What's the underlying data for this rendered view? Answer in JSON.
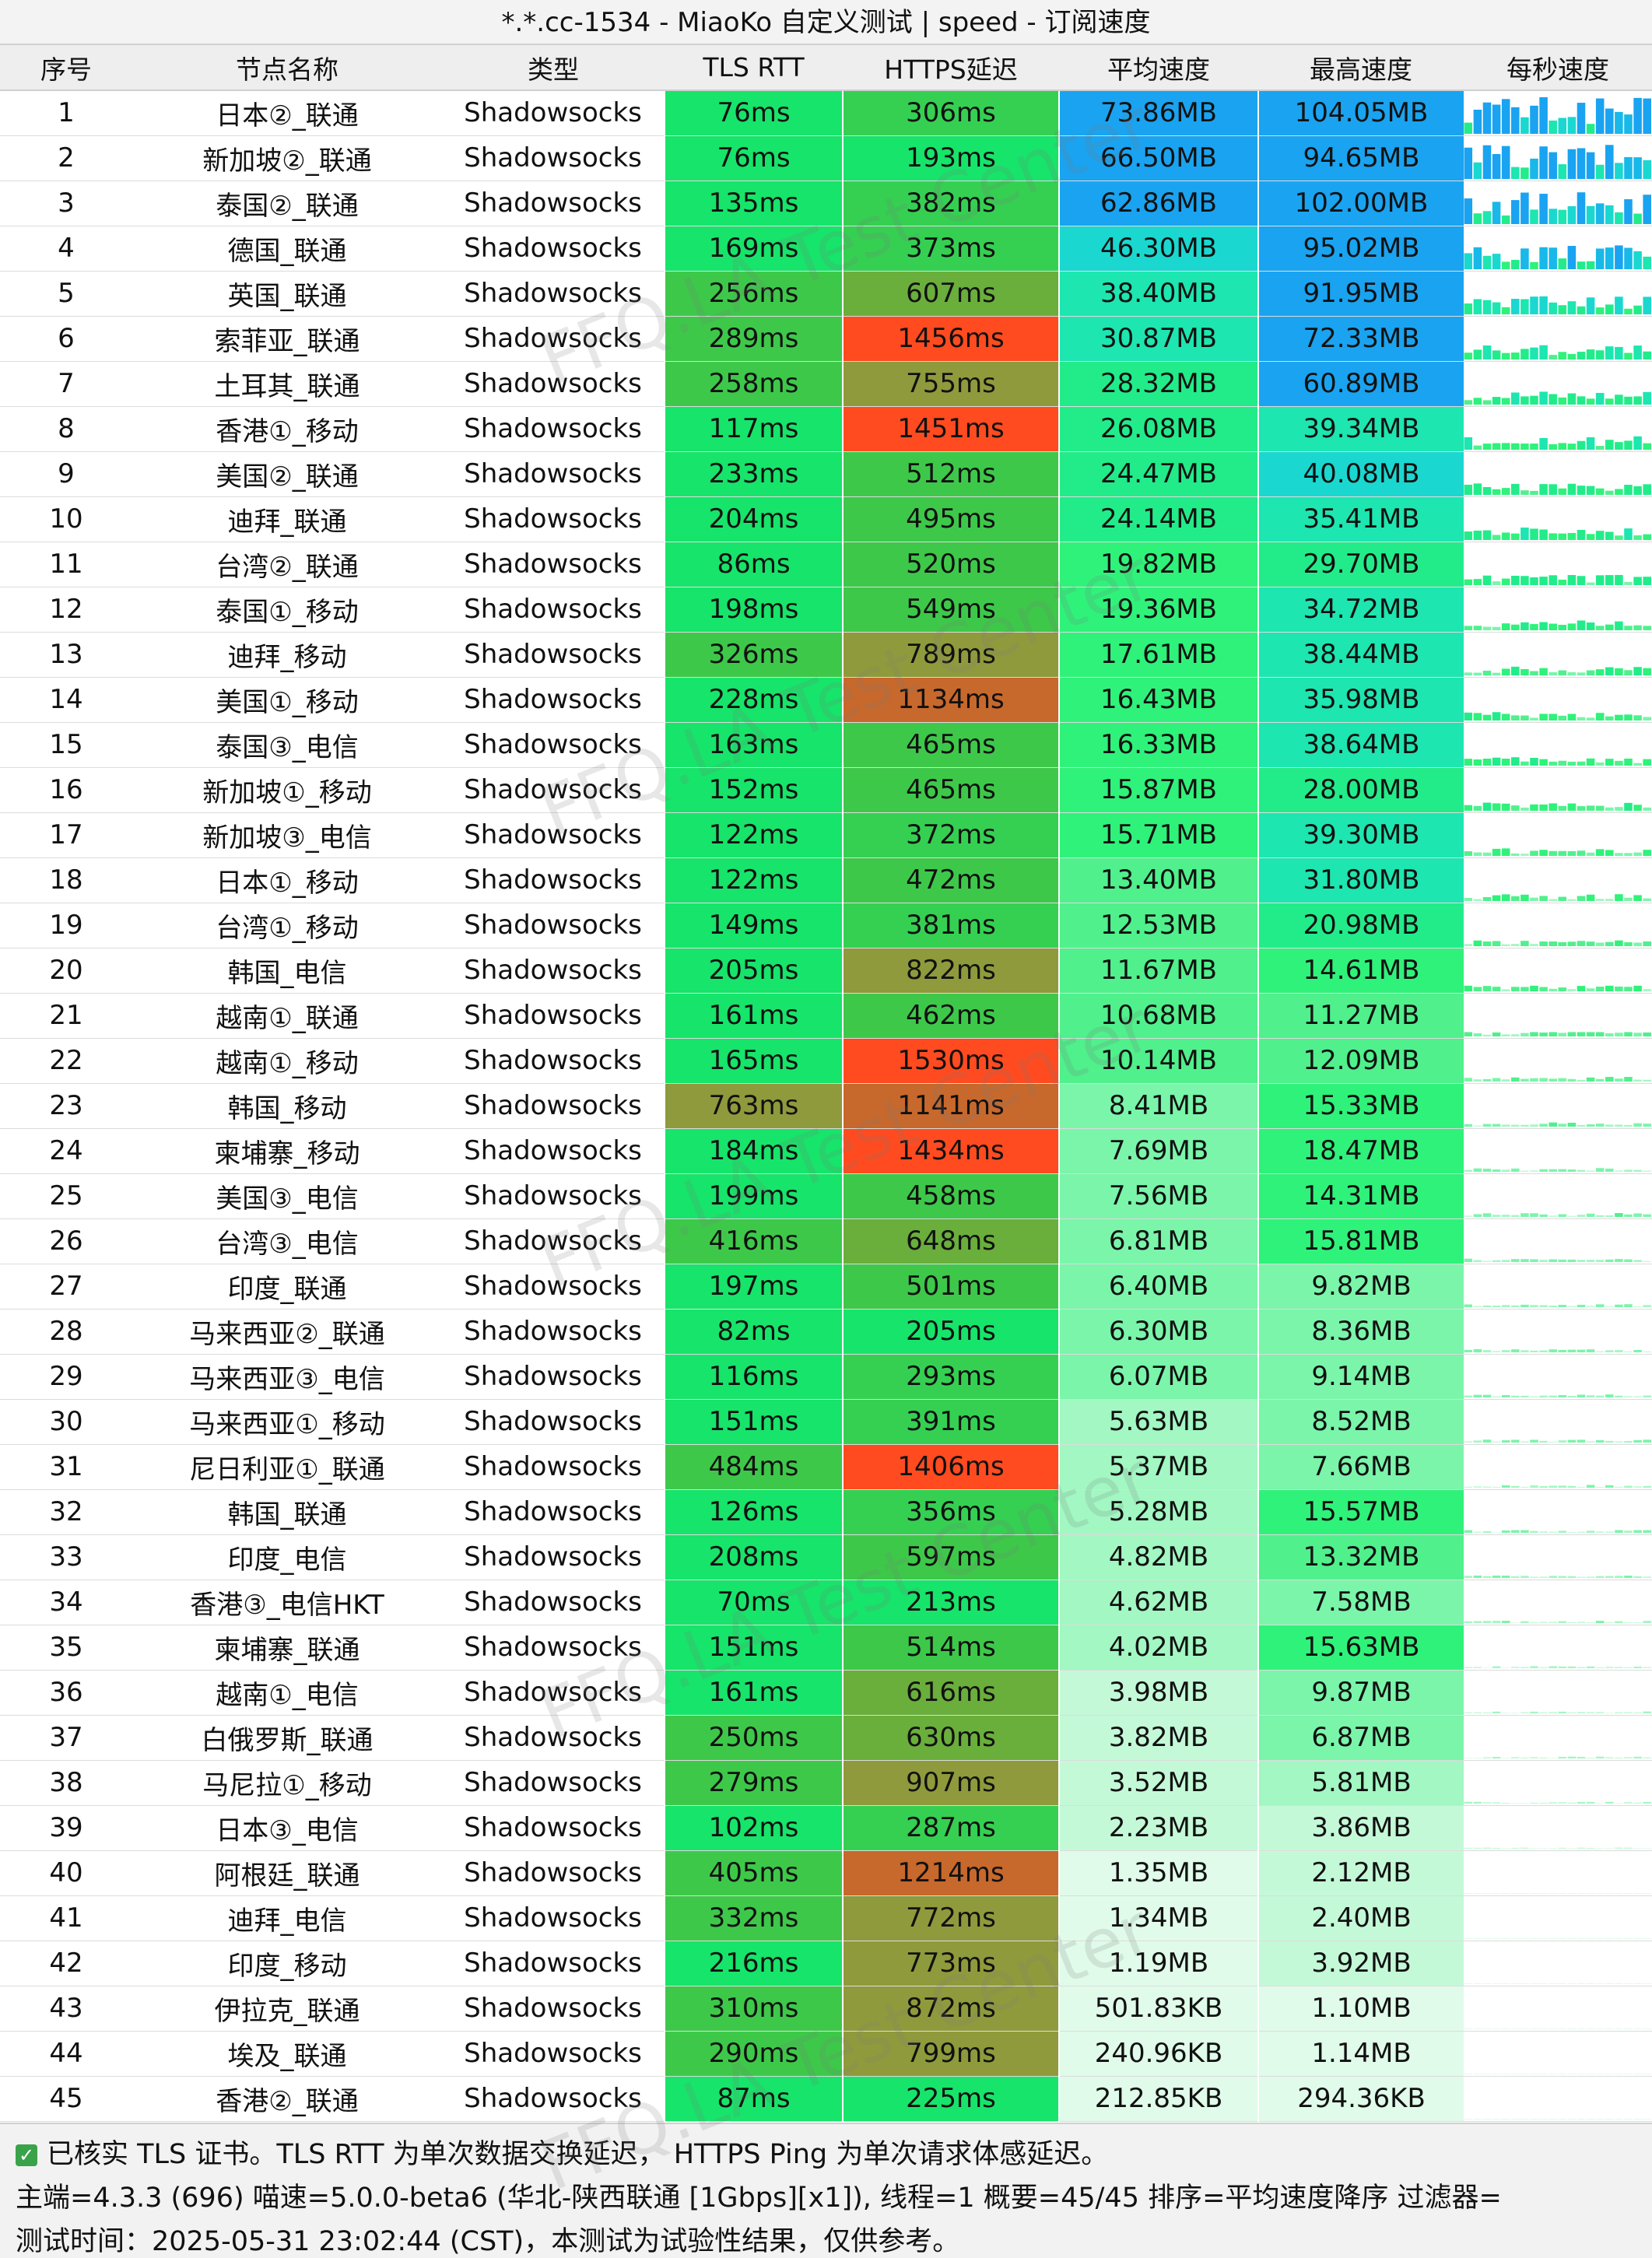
{
  "window": {
    "title": "*.*.cc-1534 - MiaoKo 自定义测试 | speed - 订阅速度"
  },
  "table": {
    "headers": [
      "序号",
      "节点名称",
      "类型",
      "TLS RTT",
      "HTTPS延迟",
      "平均速度",
      "最高速度",
      "每秒速度"
    ],
    "rows": [
      {
        "idx": "1",
        "name": "日本②_联通",
        "type": "Shadowsocks",
        "rtt": "76ms",
        "https": "306ms",
        "avg": "73.86MB",
        "max": "104.05MB"
      },
      {
        "idx": "2",
        "name": "新加坡②_联通",
        "type": "Shadowsocks",
        "rtt": "76ms",
        "https": "193ms",
        "avg": "66.50MB",
        "max": "94.65MB"
      },
      {
        "idx": "3",
        "name": "泰国②_联通",
        "type": "Shadowsocks",
        "rtt": "135ms",
        "https": "382ms",
        "avg": "62.86MB",
        "max": "102.00MB"
      },
      {
        "idx": "4",
        "name": "德国_联通",
        "type": "Shadowsocks",
        "rtt": "169ms",
        "https": "373ms",
        "avg": "46.30MB",
        "max": "95.02MB"
      },
      {
        "idx": "5",
        "name": "英国_联通",
        "type": "Shadowsocks",
        "rtt": "256ms",
        "https": "607ms",
        "avg": "38.40MB",
        "max": "91.95MB"
      },
      {
        "idx": "6",
        "name": "索菲亚_联通",
        "type": "Shadowsocks",
        "rtt": "289ms",
        "https": "1456ms",
        "avg": "30.87MB",
        "max": "72.33MB"
      },
      {
        "idx": "7",
        "name": "土耳其_联通",
        "type": "Shadowsocks",
        "rtt": "258ms",
        "https": "755ms",
        "avg": "28.32MB",
        "max": "60.89MB"
      },
      {
        "idx": "8",
        "name": "香港①_移动",
        "type": "Shadowsocks",
        "rtt": "117ms",
        "https": "1451ms",
        "avg": "26.08MB",
        "max": "39.34MB"
      },
      {
        "idx": "9",
        "name": "美国②_联通",
        "type": "Shadowsocks",
        "rtt": "233ms",
        "https": "512ms",
        "avg": "24.47MB",
        "max": "40.08MB"
      },
      {
        "idx": "10",
        "name": "迪拜_联通",
        "type": "Shadowsocks",
        "rtt": "204ms",
        "https": "495ms",
        "avg": "24.14MB",
        "max": "35.41MB"
      },
      {
        "idx": "11",
        "name": "台湾②_联通",
        "type": "Shadowsocks",
        "rtt": "86ms",
        "https": "520ms",
        "avg": "19.82MB",
        "max": "29.70MB"
      },
      {
        "idx": "12",
        "name": "泰国①_移动",
        "type": "Shadowsocks",
        "rtt": "198ms",
        "https": "549ms",
        "avg": "19.36MB",
        "max": "34.72MB"
      },
      {
        "idx": "13",
        "name": "迪拜_移动",
        "type": "Shadowsocks",
        "rtt": "326ms",
        "https": "789ms",
        "avg": "17.61MB",
        "max": "38.44MB"
      },
      {
        "idx": "14",
        "name": "美国①_移动",
        "type": "Shadowsocks",
        "rtt": "228ms",
        "https": "1134ms",
        "avg": "16.43MB",
        "max": "35.98MB"
      },
      {
        "idx": "15",
        "name": "泰国③_电信",
        "type": "Shadowsocks",
        "rtt": "163ms",
        "https": "465ms",
        "avg": "16.33MB",
        "max": "38.64MB"
      },
      {
        "idx": "16",
        "name": "新加坡①_移动",
        "type": "Shadowsocks",
        "rtt": "152ms",
        "https": "465ms",
        "avg": "15.87MB",
        "max": "28.00MB"
      },
      {
        "idx": "17",
        "name": "新加坡③_电信",
        "type": "Shadowsocks",
        "rtt": "122ms",
        "https": "372ms",
        "avg": "15.71MB",
        "max": "39.30MB"
      },
      {
        "idx": "18",
        "name": "日本①_移动",
        "type": "Shadowsocks",
        "rtt": "122ms",
        "https": "472ms",
        "avg": "13.40MB",
        "max": "31.80MB"
      },
      {
        "idx": "19",
        "name": "台湾①_移动",
        "type": "Shadowsocks",
        "rtt": "149ms",
        "https": "381ms",
        "avg": "12.53MB",
        "max": "20.98MB"
      },
      {
        "idx": "20",
        "name": "韩国_电信",
        "type": "Shadowsocks",
        "rtt": "205ms",
        "https": "822ms",
        "avg": "11.67MB",
        "max": "14.61MB"
      },
      {
        "idx": "21",
        "name": "越南①_联通",
        "type": "Shadowsocks",
        "rtt": "161ms",
        "https": "462ms",
        "avg": "10.68MB",
        "max": "11.27MB"
      },
      {
        "idx": "22",
        "name": "越南①_移动",
        "type": "Shadowsocks",
        "rtt": "165ms",
        "https": "1530ms",
        "avg": "10.14MB",
        "max": "12.09MB"
      },
      {
        "idx": "23",
        "name": "韩国_移动",
        "type": "Shadowsocks",
        "rtt": "763ms",
        "https": "1141ms",
        "avg": "8.41MB",
        "max": "15.33MB"
      },
      {
        "idx": "24",
        "name": "柬埔寨_移动",
        "type": "Shadowsocks",
        "rtt": "184ms",
        "https": "1434ms",
        "avg": "7.69MB",
        "max": "18.47MB"
      },
      {
        "idx": "25",
        "name": "美国③_电信",
        "type": "Shadowsocks",
        "rtt": "199ms",
        "https": "458ms",
        "avg": "7.56MB",
        "max": "14.31MB"
      },
      {
        "idx": "26",
        "name": "台湾③_电信",
        "type": "Shadowsocks",
        "rtt": "416ms",
        "https": "648ms",
        "avg": "6.81MB",
        "max": "15.81MB"
      },
      {
        "idx": "27",
        "name": "印度_联通",
        "type": "Shadowsocks",
        "rtt": "197ms",
        "https": "501ms",
        "avg": "6.40MB",
        "max": "9.82MB"
      },
      {
        "idx": "28",
        "name": "马来西亚②_联通",
        "type": "Shadowsocks",
        "rtt": "82ms",
        "https": "205ms",
        "avg": "6.30MB",
        "max": "8.36MB"
      },
      {
        "idx": "29",
        "name": "马来西亚③_电信",
        "type": "Shadowsocks",
        "rtt": "116ms",
        "https": "293ms",
        "avg": "6.07MB",
        "max": "9.14MB"
      },
      {
        "idx": "30",
        "name": "马来西亚①_移动",
        "type": "Shadowsocks",
        "rtt": "151ms",
        "https": "391ms",
        "avg": "5.63MB",
        "max": "8.52MB"
      },
      {
        "idx": "31",
        "name": "尼日利亚①_联通",
        "type": "Shadowsocks",
        "rtt": "484ms",
        "https": "1406ms",
        "avg": "5.37MB",
        "max": "7.66MB"
      },
      {
        "idx": "32",
        "name": "韩国_联通",
        "type": "Shadowsocks",
        "rtt": "126ms",
        "https": "356ms",
        "avg": "5.28MB",
        "max": "15.57MB"
      },
      {
        "idx": "33",
        "name": "印度_电信",
        "type": "Shadowsocks",
        "rtt": "208ms",
        "https": "597ms",
        "avg": "4.82MB",
        "max": "13.32MB"
      },
      {
        "idx": "34",
        "name": "香港③_电信HKT",
        "type": "Shadowsocks",
        "rtt": "70ms",
        "https": "213ms",
        "avg": "4.62MB",
        "max": "7.58MB"
      },
      {
        "idx": "35",
        "name": "柬埔寨_联通",
        "type": "Shadowsocks",
        "rtt": "151ms",
        "https": "514ms",
        "avg": "4.02MB",
        "max": "15.63MB"
      },
      {
        "idx": "36",
        "name": "越南①_电信",
        "type": "Shadowsocks",
        "rtt": "161ms",
        "https": "616ms",
        "avg": "3.98MB",
        "max": "9.87MB"
      },
      {
        "idx": "37",
        "name": "白俄罗斯_联通",
        "type": "Shadowsocks",
        "rtt": "250ms",
        "https": "630ms",
        "avg": "3.82MB",
        "max": "6.87MB"
      },
      {
        "idx": "38",
        "name": "马尼拉①_移动",
        "type": "Shadowsocks",
        "rtt": "279ms",
        "https": "907ms",
        "avg": "3.52MB",
        "max": "5.81MB"
      },
      {
        "idx": "39",
        "name": "日本③_电信",
        "type": "Shadowsocks",
        "rtt": "102ms",
        "https": "287ms",
        "avg": "2.23MB",
        "max": "3.86MB"
      },
      {
        "idx": "40",
        "name": "阿根廷_联通",
        "type": "Shadowsocks",
        "rtt": "405ms",
        "https": "1214ms",
        "avg": "1.35MB",
        "max": "2.12MB"
      },
      {
        "idx": "41",
        "name": "迪拜_电信",
        "type": "Shadowsocks",
        "rtt": "332ms",
        "https": "772ms",
        "avg": "1.34MB",
        "max": "2.40MB"
      },
      {
        "idx": "42",
        "name": "印度_移动",
        "type": "Shadowsocks",
        "rtt": "216ms",
        "https": "773ms",
        "avg": "1.19MB",
        "max": "3.92MB"
      },
      {
        "idx": "43",
        "name": "伊拉克_联通",
        "type": "Shadowsocks",
        "rtt": "310ms",
        "https": "872ms",
        "avg": "501.83KB",
        "max": "1.10MB"
      },
      {
        "idx": "44",
        "name": "埃及_联通",
        "type": "Shadowsocks",
        "rtt": "290ms",
        "https": "799ms",
        "avg": "240.96KB",
        "max": "1.14MB"
      },
      {
        "idx": "45",
        "name": "香港②_联通",
        "type": "Shadowsocks",
        "rtt": "87ms",
        "https": "225ms",
        "avg": "212.85KB",
        "max": "294.36KB"
      }
    ]
  },
  "footer": {
    "line1": "已核实 TLS 证书。TLS RTT 为单次数据交换延迟， HTTPS Ping 为单次请求体感延迟。",
    "line2": "主端=4.3.3 (696) 喵速=5.0.0-beta6 (华北-陕西联通 [1Gbps][x1]), 线程=1 概要=45/45 排序=平均速度降序 过滤器=",
    "line3": "测试时间：2025-05-31 23:02:44 (CST)，本测试为试验性结果，仅供参考。"
  },
  "watermark": {
    "text": "FFQ.LA Test Center"
  },
  "colors": {
    "good": "#19e36a",
    "mid": "#5fc046",
    "olive": "#8a9a3a",
    "orange": "#c96a2a",
    "red": "#ff4b1f",
    "speed_blue": "#1aa3f0",
    "speed_teal": "#1de6b0"
  }
}
